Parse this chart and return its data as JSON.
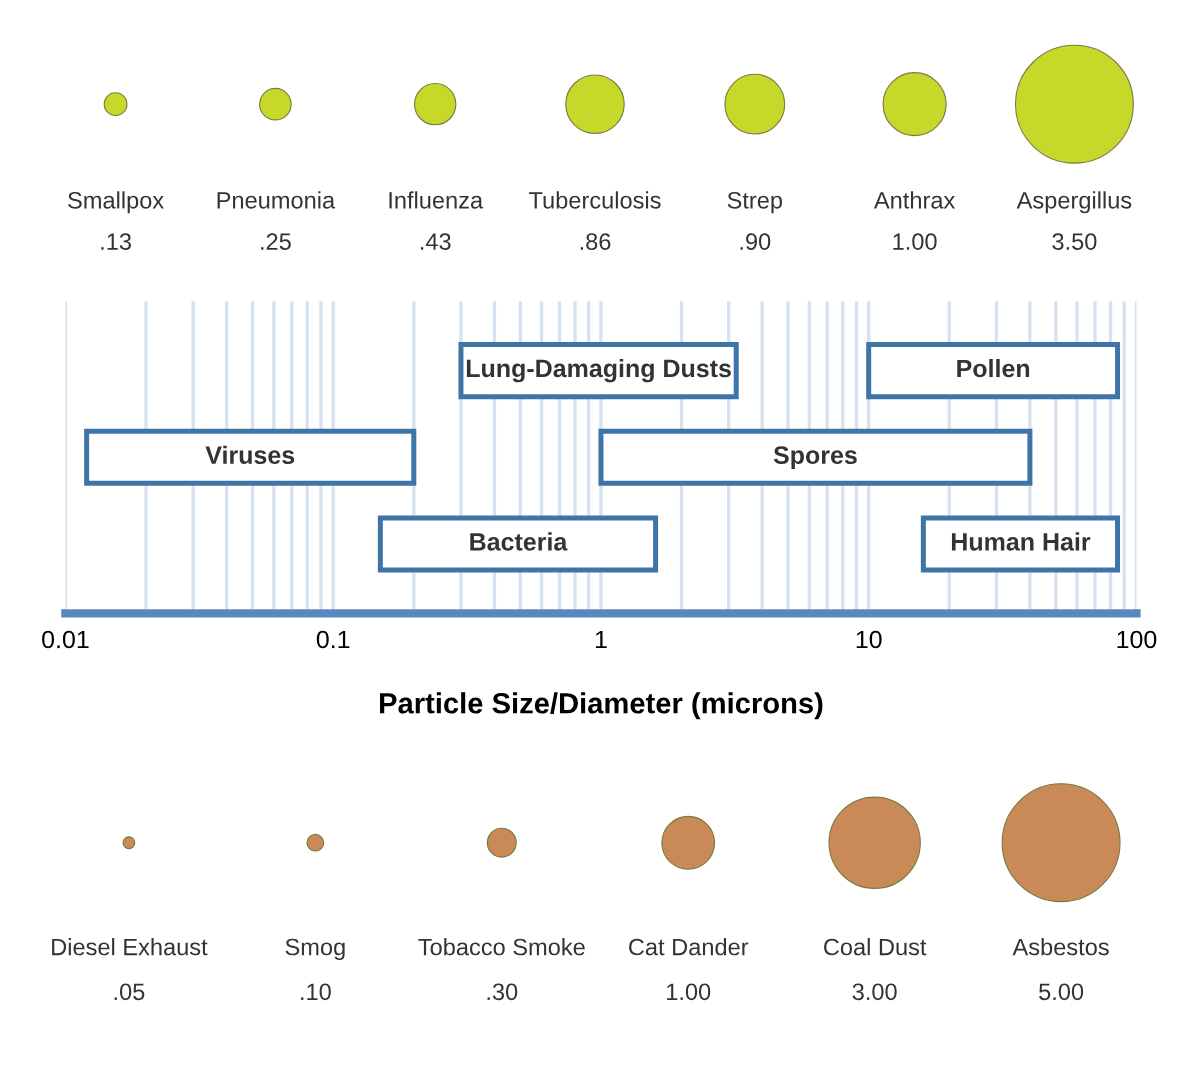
{
  "chart_data": [
    {
      "type": "other",
      "categories": [
        "Smallpox",
        "Pneumonia",
        "Influenza",
        "Tuberculosis",
        "Strep",
        "Anthrax",
        "Aspergillus"
      ],
      "values": [
        0.13,
        0.25,
        0.43,
        0.86,
        0.9,
        1.0,
        3.5
      ],
      "value_labels": [
        ".13",
        ".25",
        ".43",
        ".86",
        ".90",
        "1.00",
        "3.50"
      ],
      "color": "#c6d92a"
    },
    {
      "type": "bar",
      "orientation": "horizontal",
      "categories": [
        null,
        null,
        null
      ],
      "xlabel": "Particle Size/Diameter (microns)",
      "log": "x",
      "xlim": [
        0.01,
        100
      ],
      "xticks": [
        {
          "value": 0.01,
          "label": "0.01"
        },
        {
          "value": 0.02,
          "label": null
        },
        {
          "value": 0.03,
          "label": null
        },
        {
          "value": 0.04,
          "label": null
        },
        {
          "value": 0.05,
          "label": null
        },
        {
          "value": 0.06,
          "label": null
        },
        {
          "value": 0.07,
          "label": null
        },
        {
          "value": 0.08,
          "label": null
        },
        {
          "value": 0.09,
          "label": null
        },
        0.1,
        {
          "value": 0.2,
          "label": null
        },
        {
          "value": 0.3,
          "label": null
        },
        {
          "value": 0.4,
          "label": null
        },
        {
          "value": 0.5,
          "label": null
        },
        {
          "value": 0.6,
          "label": null
        },
        {
          "value": 0.7,
          "label": null
        },
        {
          "value": 0.8,
          "label": null
        },
        {
          "value": 0.9,
          "label": null
        },
        1,
        {
          "value": 2,
          "label": null
        },
        {
          "value": 3,
          "label": null
        },
        {
          "value": 4,
          "label": null
        },
        {
          "value": 5,
          "label": null
        },
        {
          "value": 6,
          "label": null
        },
        {
          "value": 7,
          "label": null
        },
        {
          "value": 8,
          "label": null
        },
        {
          "value": 9,
          "label": null
        },
        10,
        {
          "value": 20,
          "label": null
        },
        {
          "value": 30,
          "label": null
        },
        {
          "value": 40,
          "label": null
        },
        {
          "value": 50,
          "label": null
        },
        {
          "value": 60,
          "label": null
        },
        {
          "value": 70,
          "label": null
        },
        {
          "value": 80,
          "label": null
        },
        {
          "value": 90,
          "label": null
        },
        100
      ],
      "grid": "x",
      "tick_labels": "x",
      "series": [
        {
          "name": "Lung-Damaging Dusts",
          "color": "#3f74a8",
          "base": [
            0.3,
            null,
            null
          ],
          "values": [
            2.9,
            null,
            null
          ]
        },
        {
          "name": "Pollen",
          "color": "#3f74a8",
          "base": [
            10,
            null,
            null
          ],
          "values": [
            75,
            null,
            null
          ]
        },
        {
          "name": "Viruses",
          "color": "#3f74a8",
          "base": [
            null,
            0.012,
            null
          ],
          "values": [
            null,
            0.188,
            null
          ]
        },
        {
          "name": "Spores",
          "color": "#3f74a8",
          "base": [
            null,
            1,
            null
          ],
          "values": [
            null,
            39,
            null
          ]
        },
        {
          "name": "Bacteria",
          "color": "#3f74a8",
          "base": [
            null,
            null,
            0.15
          ],
          "values": [
            null,
            null,
            1.45
          ]
        },
        {
          "name": "Human Hair",
          "color": "#3f74a8",
          "base": [
            null,
            null,
            16
          ],
          "values": [
            null,
            null,
            69
          ]
        }
      ]
    },
    {
      "type": "other",
      "categories": [
        "Diesel Exhaust",
        "Smog",
        "Tobacco Smoke",
        "Cat Dander",
        "Coal Dust",
        "Asbestos"
      ],
      "values": [
        0.05,
        0.1,
        0.3,
        1.0,
        3.0,
        5.0
      ],
      "value_labels": [
        ".05",
        ".10",
        ".30",
        "1.00",
        "3.00",
        "5.00"
      ],
      "color": "#c98a58"
    }
  ]
}
